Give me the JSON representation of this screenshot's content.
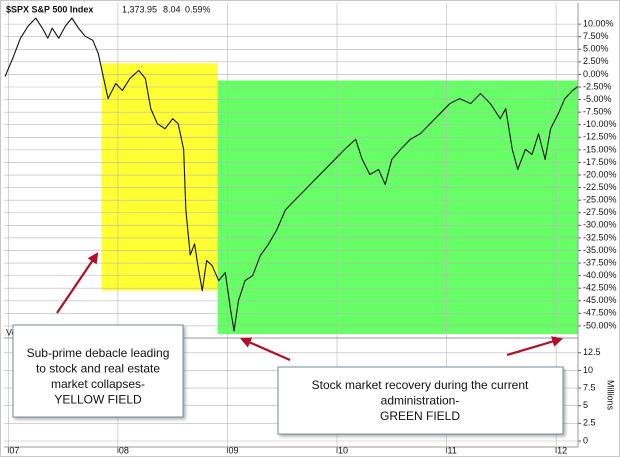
{
  "chart_data": {
    "type": "line",
    "header": {
      "symbol": "$SPX S&P 500 Index",
      "price": "1,373.95",
      "change": "8.04",
      "change_pct": "0.59%",
      "change_color": "#1a9a1a"
    },
    "volume_label": "Vo",
    "x": [
      6.97,
      7.04,
      7.11,
      7.18,
      7.25,
      7.31,
      7.36,
      7.4,
      7.46,
      7.52,
      7.58,
      7.64,
      7.7,
      7.77,
      7.82,
      7.87,
      7.91,
      7.98,
      8.04,
      8.11,
      8.19,
      8.25,
      8.3,
      8.36,
      8.43,
      8.5,
      8.55,
      8.6,
      8.62,
      8.66,
      8.7,
      8.73,
      8.77,
      8.81,
      8.86,
      8.92,
      8.98,
      9.03,
      9.06,
      9.1,
      9.16,
      9.23,
      9.3,
      9.37,
      9.45,
      9.53,
      9.62,
      9.71,
      9.8,
      9.89,
      9.98,
      10.07,
      10.17,
      10.23,
      10.3,
      10.38,
      10.44,
      10.5,
      10.58,
      10.67,
      10.76,
      10.85,
      10.94,
      11.03,
      11.12,
      11.22,
      11.31,
      11.4,
      11.49,
      11.54,
      11.6,
      11.65,
      11.72,
      11.78,
      11.84,
      11.9,
      11.95,
      12.02,
      12.08,
      12.15,
      12.2
    ],
    "values": [
      -0.4,
      3.2,
      7.2,
      9.6,
      11.2,
      9.2,
      7.2,
      9.2,
      7.2,
      9.6,
      11.2,
      9.2,
      7.6,
      6.8,
      4.2,
      -0.8,
      -4.8,
      -1.8,
      -3.2,
      -0.8,
      0.8,
      -0.8,
      -6.8,
      -9.8,
      -10.8,
      -8.8,
      -9.8,
      -14.9,
      -26.9,
      -35.9,
      -33.7,
      -38.0,
      -43.0,
      -37.0,
      -38.0,
      -41.0,
      -39.4,
      -47.0,
      -51.0,
      -45.0,
      -41.0,
      -40.0,
      -36.0,
      -33.9,
      -30.9,
      -26.9,
      -24.9,
      -22.9,
      -20.9,
      -18.9,
      -16.9,
      -14.9,
      -12.9,
      -16.9,
      -19.9,
      -18.9,
      -21.9,
      -16.9,
      -14.9,
      -12.9,
      -11.8,
      -9.8,
      -7.8,
      -5.8,
      -4.8,
      -5.8,
      -3.8,
      -5.8,
      -8.8,
      -6.8,
      -14.9,
      -18.9,
      -14.9,
      -15.9,
      -11.8,
      -16.9,
      -10.8,
      -7.8,
      -4.8,
      -3.2,
      -2.4
    ],
    "color": "#111111",
    "xlim": [
      6.96,
      12.2
    ],
    "xticks": [
      {
        "value": 7,
        "label": "07"
      },
      {
        "value": 8,
        "label": "08"
      },
      {
        "value": 9,
        "label": "09"
      },
      {
        "value": 10,
        "label": "10"
      },
      {
        "value": 11,
        "label": "11"
      },
      {
        "value": 12,
        "label": "12"
      }
    ],
    "ylim": [
      -52.4,
      14.2
    ],
    "yticks": [
      {
        "value": 10,
        "label": "10.00%"
      },
      {
        "value": 7.5,
        "label": "7.50%"
      },
      {
        "value": 5,
        "label": "5.00%"
      },
      {
        "value": 2.5,
        "label": "2.50%"
      },
      {
        "value": 0,
        "label": "0.00%"
      },
      {
        "value": -2.5,
        "label": "-2.50%"
      },
      {
        "value": -5,
        "label": "-5.00%"
      },
      {
        "value": -7.5,
        "label": "-7.50%"
      },
      {
        "value": -10,
        "label": "-10.00%"
      },
      {
        "value": -12.5,
        "label": "-12.50%"
      },
      {
        "value": -15,
        "label": "-15.00%"
      },
      {
        "value": -17.5,
        "label": "-17.50%"
      },
      {
        "value": -20,
        "label": "-20.00%"
      },
      {
        "value": -22.5,
        "label": "-22.50%"
      },
      {
        "value": -25,
        "label": "-25.00%"
      },
      {
        "value": -27.5,
        "label": "-27.50%"
      },
      {
        "value": -30,
        "label": "-30.00%"
      },
      {
        "value": -32.5,
        "label": "-32.50%"
      },
      {
        "value": -35,
        "label": "-35.00%"
      },
      {
        "value": -37.5,
        "label": "-37.50%"
      },
      {
        "value": -40,
        "label": "-40.00%"
      },
      {
        "value": -42.5,
        "label": "-42.50%"
      },
      {
        "value": -45,
        "label": "-45.00%"
      },
      {
        "value": -47.5,
        "label": "-47.50%"
      },
      {
        "value": -50,
        "label": "-50.00%"
      }
    ],
    "y2lim": [
      -0.85,
      13.6
    ],
    "y2ticks": [
      12.5,
      10,
      7.5,
      5,
      2.5,
      0
    ],
    "y2label": "Millions",
    "grid": true,
    "regions": [
      {
        "x": [
          7.85,
          8.91
        ],
        "y": [
          2.2,
          -43
        ],
        "color": "#ffff33"
      },
      {
        "x": [
          8.91,
          12.2
        ],
        "y": [
          -1.2,
          -51.6
        ],
        "color": "#66ff66"
      }
    ],
    "annotations": [
      {
        "lines": [
          "Sub-prime debacle leading",
          "to stock and real estate",
          "market collapses-",
          "YELLOW FIELD"
        ]
      },
      {
        "lines": [
          "Stock market recovery during the current",
          "administration-",
          "GREEN FIELD"
        ]
      }
    ]
  }
}
